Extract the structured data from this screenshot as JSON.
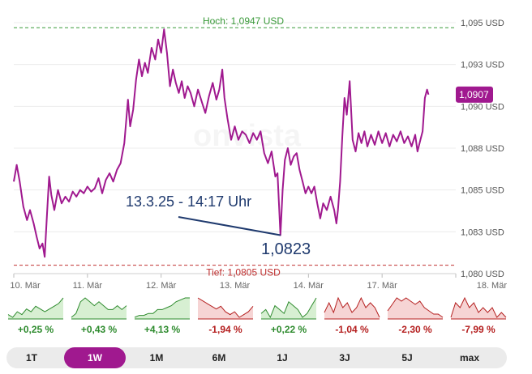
{
  "chart_data": {
    "type": "line",
    "ylabels": [
      "1,095 USD",
      "1,093 USD",
      "1,090 USD",
      "1,088 USD",
      "1,085 USD",
      "1,083 USD",
      "1,080 USD"
    ],
    "yticks": [
      1.095,
      1.0925,
      1.09,
      1.0875,
      1.085,
      1.0825,
      1.08
    ],
    "ylim": [
      1.08,
      1.095
    ],
    "xlabels": [
      "10. Mär",
      "11. Mär",
      "12. Mär",
      "13. Mär",
      "14. Mär",
      "17. Mär",
      "18. Mär"
    ],
    "xlim": [
      0,
      6
    ],
    "high": {
      "label": "Hoch: 1,0947 USD",
      "value": 1.0947
    },
    "low": {
      "label": "Tief: 1,0805 USD",
      "value": 1.0805
    },
    "current": {
      "label": "1,0907",
      "value": 1.0907
    },
    "annotation": {
      "label": "13.3.25 - 14:17 Uhr",
      "value_label": "1,0823",
      "x": 3.62,
      "y": 1.0823
    },
    "series": [
      {
        "values": [
          [
            0.0,
            1.0855
          ],
          [
            0.04,
            1.0865
          ],
          [
            0.08,
            1.0855
          ],
          [
            0.13,
            1.084
          ],
          [
            0.18,
            1.0832
          ],
          [
            0.22,
            1.0838
          ],
          [
            0.27,
            1.083
          ],
          [
            0.31,
            1.0822
          ],
          [
            0.35,
            1.0815
          ],
          [
            0.39,
            1.0818
          ],
          [
            0.42,
            1.081
          ],
          [
            0.45,
            1.0835
          ],
          [
            0.48,
            1.0858
          ],
          [
            0.51,
            1.0847
          ],
          [
            0.55,
            1.0838
          ],
          [
            0.6,
            1.085
          ],
          [
            0.65,
            1.0842
          ],
          [
            0.7,
            1.0846
          ],
          [
            0.75,
            1.0843
          ],
          [
            0.8,
            1.0849
          ],
          [
            0.85,
            1.0846
          ],
          [
            0.9,
            1.085
          ],
          [
            0.95,
            1.0848
          ],
          [
            1.0,
            1.0852
          ],
          [
            1.05,
            1.0849
          ],
          [
            1.1,
            1.0851
          ],
          [
            1.15,
            1.0857
          ],
          [
            1.2,
            1.0848
          ],
          [
            1.25,
            1.0856
          ],
          [
            1.3,
            1.086
          ],
          [
            1.35,
            1.0855
          ],
          [
            1.4,
            1.0862
          ],
          [
            1.45,
            1.0866
          ],
          [
            1.5,
            1.0878
          ],
          [
            1.55,
            1.0904
          ],
          [
            1.58,
            1.0888
          ],
          [
            1.62,
            1.0898
          ],
          [
            1.66,
            1.0916
          ],
          [
            1.7,
            1.0928
          ],
          [
            1.74,
            1.0918
          ],
          [
            1.78,
            1.0926
          ],
          [
            1.82,
            1.092
          ],
          [
            1.87,
            1.0935
          ],
          [
            1.92,
            1.0928
          ],
          [
            1.96,
            1.094
          ],
          [
            2.0,
            1.0932
          ],
          [
            2.04,
            1.0946
          ],
          [
            2.08,
            1.0932
          ],
          [
            2.12,
            1.0912
          ],
          [
            2.16,
            1.0922
          ],
          [
            2.2,
            1.0914
          ],
          [
            2.24,
            1.0908
          ],
          [
            2.28,
            1.0915
          ],
          [
            2.32,
            1.0905
          ],
          [
            2.36,
            1.0912
          ],
          [
            2.4,
            1.0908
          ],
          [
            2.45,
            1.09
          ],
          [
            2.5,
            1.091
          ],
          [
            2.55,
            1.0903
          ],
          [
            2.6,
            1.0896
          ],
          [
            2.65,
            1.0906
          ],
          [
            2.7,
            1.0914
          ],
          [
            2.75,
            1.0904
          ],
          [
            2.79,
            1.091
          ],
          [
            2.83,
            1.0922
          ],
          [
            2.86,
            1.0905
          ],
          [
            2.9,
            1.0893
          ],
          [
            2.95,
            1.088
          ],
          [
            3.0,
            1.0888
          ],
          [
            3.05,
            1.088
          ],
          [
            3.1,
            1.0885
          ],
          [
            3.15,
            1.0883
          ],
          [
            3.2,
            1.0878
          ],
          [
            3.25,
            1.0884
          ],
          [
            3.3,
            1.088
          ],
          [
            3.35,
            1.0885
          ],
          [
            3.4,
            1.0872
          ],
          [
            3.45,
            1.0866
          ],
          [
            3.5,
            1.0873
          ],
          [
            3.55,
            1.0858
          ],
          [
            3.58,
            1.086
          ],
          [
            3.62,
            1.0823
          ],
          [
            3.65,
            1.085
          ],
          [
            3.68,
            1.0868
          ],
          [
            3.72,
            1.0875
          ],
          [
            3.76,
            1.0865
          ],
          [
            3.8,
            1.087
          ],
          [
            3.84,
            1.0872
          ],
          [
            3.88,
            1.0862
          ],
          [
            3.92,
            1.0855
          ],
          [
            3.96,
            1.0848
          ],
          [
            4.0,
            1.0852
          ],
          [
            4.04,
            1.0848
          ],
          [
            4.08,
            1.0852
          ],
          [
            4.12,
            1.0842
          ],
          [
            4.16,
            1.0833
          ],
          [
            4.2,
            1.0842
          ],
          [
            4.25,
            1.0838
          ],
          [
            4.3,
            1.0846
          ],
          [
            4.35,
            1.0838
          ],
          [
            4.38,
            1.083
          ],
          [
            4.4,
            1.0838
          ],
          [
            4.43,
            1.0855
          ],
          [
            4.46,
            1.0882
          ],
          [
            4.49,
            1.0905
          ],
          [
            4.52,
            1.0895
          ],
          [
            4.56,
            1.0915
          ],
          [
            4.6,
            1.088
          ],
          [
            4.64,
            1.0873
          ],
          [
            4.68,
            1.0884
          ],
          [
            4.72,
            1.0878
          ],
          [
            4.76,
            1.0885
          ],
          [
            4.8,
            1.0876
          ],
          [
            4.85,
            1.0883
          ],
          [
            4.9,
            1.0877
          ],
          [
            4.95,
            1.0885
          ],
          [
            5.0,
            1.0878
          ],
          [
            5.05,
            1.0884
          ],
          [
            5.1,
            1.0876
          ],
          [
            5.15,
            1.0883
          ],
          [
            5.2,
            1.0879
          ],
          [
            5.25,
            1.0885
          ],
          [
            5.3,
            1.0878
          ],
          [
            5.35,
            1.0882
          ],
          [
            5.4,
            1.0876
          ],
          [
            5.45,
            1.0883
          ],
          [
            5.48,
            1.0873
          ],
          [
            5.52,
            1.088
          ],
          [
            5.55,
            1.0885
          ],
          [
            5.58,
            1.0905
          ],
          [
            5.61,
            1.091
          ],
          [
            5.63,
            1.0907
          ]
        ]
      }
    ],
    "grid": true
  },
  "sparklines": [
    {
      "label": "+0,25 %",
      "trend": "pos",
      "values": [
        3,
        2,
        4,
        3,
        5,
        4,
        6,
        5,
        4,
        5,
        6,
        7,
        9
      ]
    },
    {
      "label": "+0,43 %",
      "trend": "pos",
      "values": [
        3,
        4,
        7,
        8,
        7,
        6,
        7,
        6,
        5,
        5,
        6,
        5,
        6
      ]
    },
    {
      "label": "+4,13 %",
      "trend": "pos",
      "values": [
        1,
        2,
        2,
        3,
        3,
        5,
        5,
        6,
        7,
        9,
        10,
        11,
        11
      ]
    },
    {
      "label": "-1,94 %",
      "trend": "neg",
      "values": [
        9,
        8,
        7,
        6,
        5,
        6,
        4,
        3,
        4,
        2,
        3,
        4,
        6
      ]
    },
    {
      "label": "+0,22 %",
      "trend": "pos",
      "values": [
        4,
        5,
        3,
        6,
        5,
        4,
        7,
        6,
        5,
        3,
        4,
        6,
        8
      ]
    },
    {
      "label": "-1,04 %",
      "trend": "neg",
      "values": [
        6,
        8,
        6,
        9,
        7,
        8,
        6,
        7,
        9,
        7,
        8,
        7,
        5
      ]
    },
    {
      "label": "-2,30 %",
      "trend": "neg",
      "values": [
        5,
        7,
        9,
        8,
        9,
        8,
        7,
        8,
        6,
        5,
        4,
        4,
        3
      ]
    },
    {
      "label": "-7,99 %",
      "trend": "neg",
      "values": [
        4,
        7,
        6,
        8,
        6,
        7,
        5,
        6,
        5,
        6,
        4,
        5,
        4
      ]
    }
  ],
  "colors": {
    "line": "#a0198f",
    "pos": "#2e8b2e",
    "neg": "#b52020",
    "pos_fill": "#d7efd2",
    "neg_fill": "#f6d4d4",
    "high": "#3a9a3a",
    "low": "#c03030",
    "annotation": "#1f3a6e"
  },
  "ranges": [
    {
      "label": "1T",
      "active": false
    },
    {
      "label": "1W",
      "active": true
    },
    {
      "label": "1M",
      "active": false
    },
    {
      "label": "6M",
      "active": false
    },
    {
      "label": "1J",
      "active": false
    },
    {
      "label": "3J",
      "active": false
    },
    {
      "label": "5J",
      "active": false
    },
    {
      "label": "max",
      "active": false
    }
  ]
}
